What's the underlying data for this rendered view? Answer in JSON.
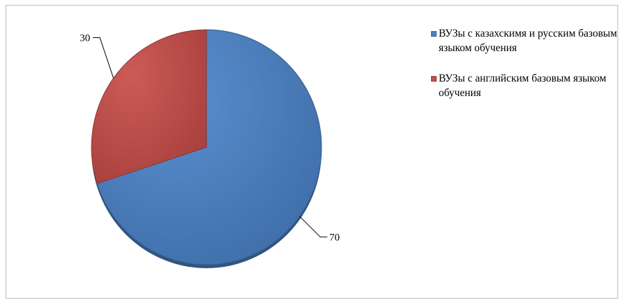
{
  "chart_data": {
    "type": "pie",
    "categories": [
      "ВУЗы с казахскимя и русским базовым языком обучения",
      "ВУЗы  с английским базовым языком обучения"
    ],
    "values": [
      70,
      30
    ],
    "data_labels": [
      "70",
      "30"
    ],
    "colors": [
      "#4f81bd",
      "#c0504d"
    ],
    "border_colors": [
      "#385d8a",
      "#8c3836"
    ],
    "legend": "right",
    "start_angle": "top, clockwise"
  }
}
